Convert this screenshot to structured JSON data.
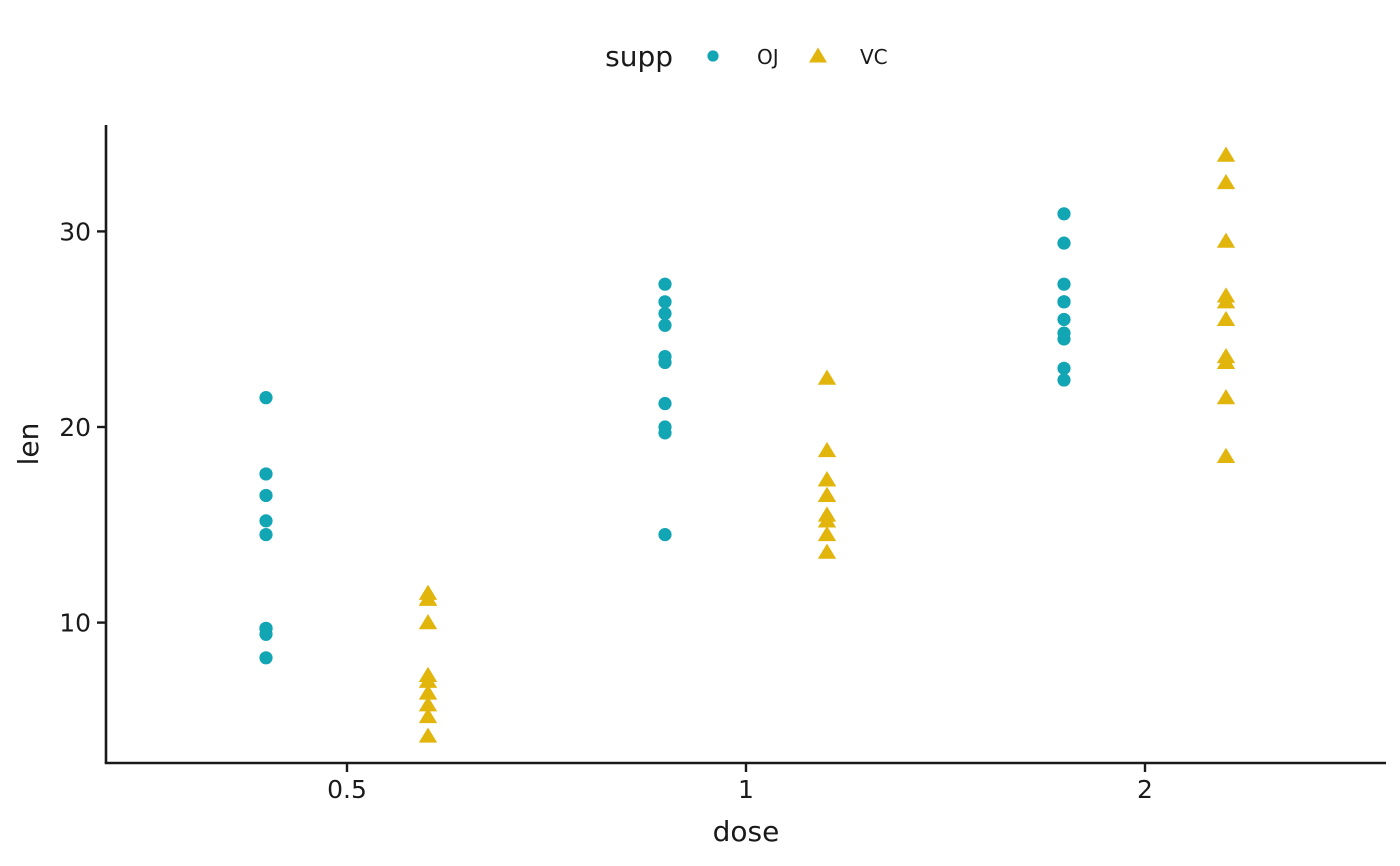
{
  "chart_data": {
    "type": "scatter",
    "xlabel": "dose",
    "ylabel": "len",
    "x_scale": "log2",
    "x_ticks": {
      "values": [
        0.5,
        1,
        2
      ],
      "labels": [
        "0.5",
        "1",
        "2"
      ]
    },
    "y_ticks": {
      "values": [
        10,
        20,
        30
      ],
      "labels": [
        "10",
        "20",
        "30"
      ]
    },
    "ylim_visible": [
      2.8,
      35.4
    ],
    "grid": "off",
    "legend": {
      "title": "supp",
      "position": "top-center"
    },
    "dodge_by": "supp",
    "series": [
      {
        "name": "OJ",
        "marker": "circle",
        "color": "#12A5B4",
        "points": [
          {
            "dose": 0.5,
            "len": 15.2
          },
          {
            "dose": 0.5,
            "len": 21.5
          },
          {
            "dose": 0.5,
            "len": 17.6
          },
          {
            "dose": 0.5,
            "len": 9.7
          },
          {
            "dose": 0.5,
            "len": 14.5
          },
          {
            "dose": 0.5,
            "len": 9.7
          },
          {
            "dose": 0.5,
            "len": 8.2
          },
          {
            "dose": 0.5,
            "len": 9.4
          },
          {
            "dose": 0.5,
            "len": 16.5
          },
          {
            "dose": 0.5,
            "len": 9.7
          },
          {
            "dose": 1,
            "len": 19.7
          },
          {
            "dose": 1,
            "len": 23.3
          },
          {
            "dose": 1,
            "len": 23.6
          },
          {
            "dose": 1,
            "len": 26.4
          },
          {
            "dose": 1,
            "len": 20.0
          },
          {
            "dose": 1,
            "len": 25.2
          },
          {
            "dose": 1,
            "len": 25.8
          },
          {
            "dose": 1,
            "len": 21.2
          },
          {
            "dose": 1,
            "len": 14.5
          },
          {
            "dose": 1,
            "len": 27.3
          },
          {
            "dose": 2,
            "len": 25.5
          },
          {
            "dose": 2,
            "len": 26.4
          },
          {
            "dose": 2,
            "len": 22.4
          },
          {
            "dose": 2,
            "len": 24.5
          },
          {
            "dose": 2,
            "len": 24.8
          },
          {
            "dose": 2,
            "len": 30.9
          },
          {
            "dose": 2,
            "len": 26.4
          },
          {
            "dose": 2,
            "len": 27.3
          },
          {
            "dose": 2,
            "len": 29.4
          },
          {
            "dose": 2,
            "len": 23.0
          }
        ]
      },
      {
        "name": "VC",
        "marker": "triangle",
        "color": "#E2B50D",
        "points": [
          {
            "dose": 0.5,
            "len": 4.2
          },
          {
            "dose": 0.5,
            "len": 11.5
          },
          {
            "dose": 0.5,
            "len": 7.3
          },
          {
            "dose": 0.5,
            "len": 5.8
          },
          {
            "dose": 0.5,
            "len": 6.4
          },
          {
            "dose": 0.5,
            "len": 10.0
          },
          {
            "dose": 0.5,
            "len": 11.2
          },
          {
            "dose": 0.5,
            "len": 11.2
          },
          {
            "dose": 0.5,
            "len": 5.2
          },
          {
            "dose": 0.5,
            "len": 7.0
          },
          {
            "dose": 1,
            "len": 16.5
          },
          {
            "dose": 1,
            "len": 16.5
          },
          {
            "dose": 1,
            "len": 15.2
          },
          {
            "dose": 1,
            "len": 17.3
          },
          {
            "dose": 1,
            "len": 22.5
          },
          {
            "dose": 1,
            "len": 17.3
          },
          {
            "dose": 1,
            "len": 13.6
          },
          {
            "dose": 1,
            "len": 14.5
          },
          {
            "dose": 1,
            "len": 18.8
          },
          {
            "dose": 1,
            "len": 15.5
          },
          {
            "dose": 2,
            "len": 23.6
          },
          {
            "dose": 2,
            "len": 18.5
          },
          {
            "dose": 2,
            "len": 33.9
          },
          {
            "dose": 2,
            "len": 25.5
          },
          {
            "dose": 2,
            "len": 26.4
          },
          {
            "dose": 2,
            "len": 32.5
          },
          {
            "dose": 2,
            "len": 26.7
          },
          {
            "dose": 2,
            "len": 21.5
          },
          {
            "dose": 2,
            "len": 23.3
          },
          {
            "dose": 2,
            "len": 29.5
          }
        ]
      }
    ]
  },
  "colors": {
    "axis": "#1a1a1a",
    "text": "#1a1a1a",
    "background": "#ffffff"
  }
}
